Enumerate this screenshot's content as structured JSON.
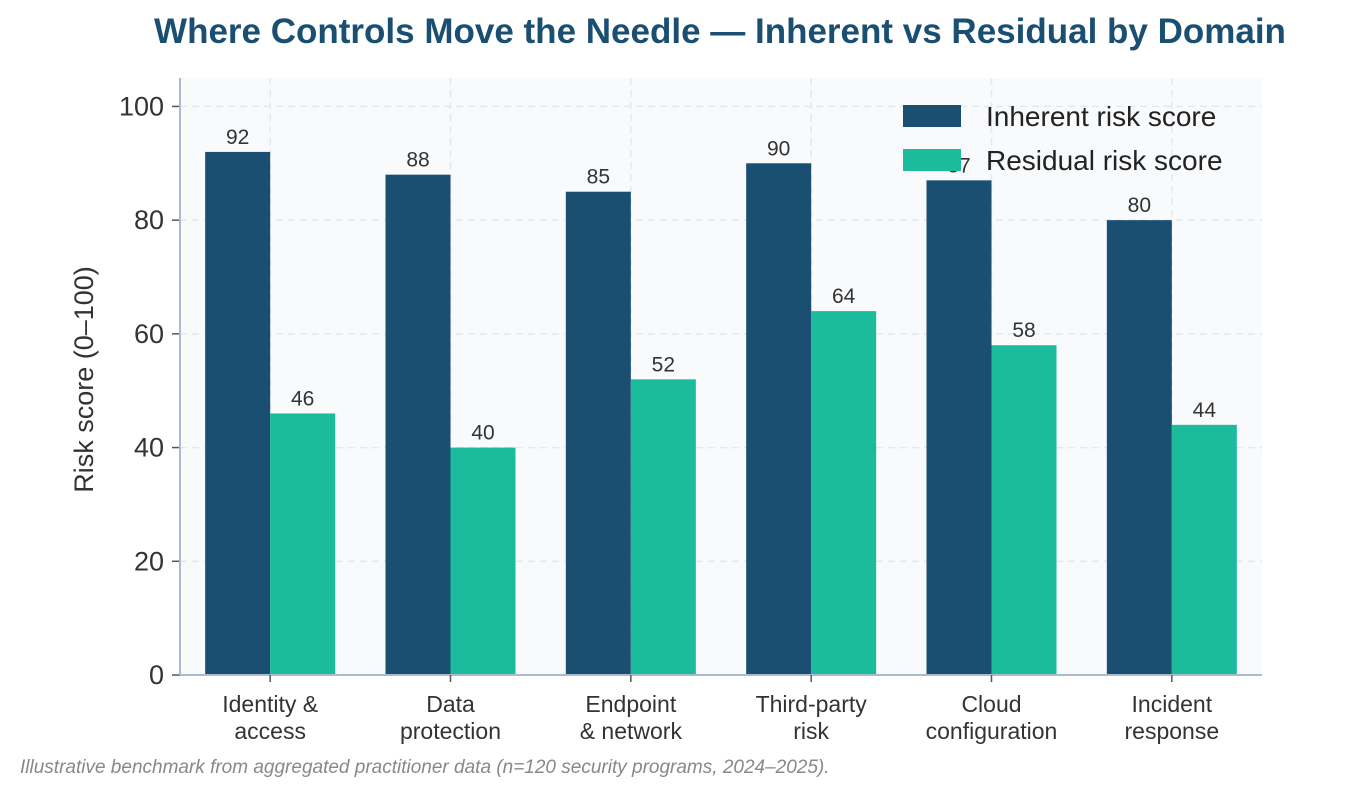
{
  "chart_data": {
    "type": "bar",
    "title": "Where Controls Move the Needle — Inherent vs Residual by Domain",
    "xlabel": "",
    "ylabel": "Risk score (0–100)",
    "ylim": [
      0,
      105
    ],
    "yticks": [
      0,
      20,
      40,
      60,
      80,
      100
    ],
    "grid": true,
    "legend_position": "top-right",
    "categories": [
      [
        "Identity &",
        "access"
      ],
      [
        "Data",
        "protection"
      ],
      [
        "Endpoint",
        "& network"
      ],
      [
        "Third-party",
        "risk"
      ],
      [
        "Cloud",
        "configuration"
      ],
      [
        "Incident",
        "response"
      ]
    ],
    "series": [
      {
        "name": "Inherent risk score",
        "color": "#1b4f72",
        "values": [
          92,
          88,
          85,
          90,
          87,
          80
        ]
      },
      {
        "name": "Residual risk score",
        "color": "#1abc9c",
        "values": [
          46,
          40,
          52,
          64,
          58,
          44
        ]
      }
    ]
  },
  "footnote": "Illustrative benchmark from aggregated practitioner data (n=120 security programs, 2024–2025)."
}
